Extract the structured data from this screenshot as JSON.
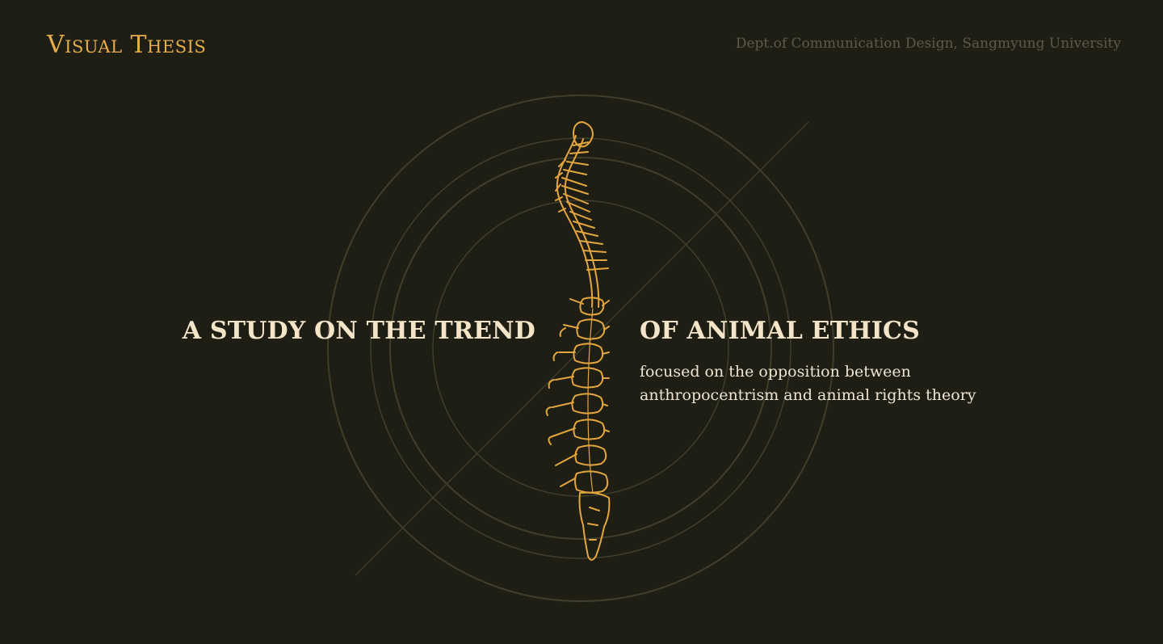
{
  "header": {
    "brand": "Visual Thesis",
    "department": "Dept.of Communication Design, Sangmyung University"
  },
  "hero": {
    "title_left": "A STUDY ON THE TREND",
    "title_right": "OF ANIMAL ETHICS",
    "subtitle_line1": "focused on the opposition between",
    "subtitle_line2": "anthropocentrism and animal rights theory"
  },
  "colors": {
    "background": "#1e1e14",
    "accent": "#e7ad4a",
    "ring": "#45452f",
    "text": "#f4e4c8",
    "muted": "#5b5a4b"
  },
  "icons": {
    "illustration": "spine-illustration"
  }
}
